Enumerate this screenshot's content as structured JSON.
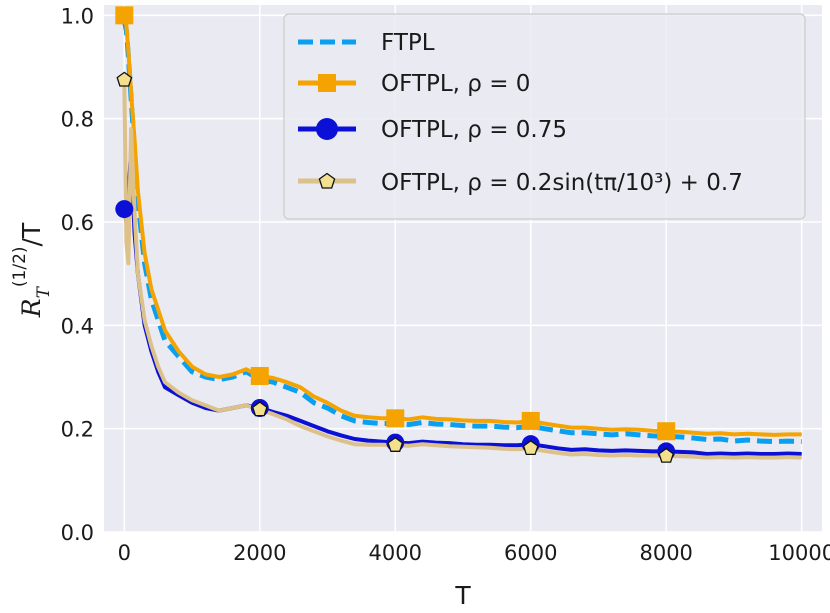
{
  "chart_data": {
    "type": "line",
    "title": "",
    "xlabel": "T",
    "ylabel": "R_T^(1/2) / T",
    "ylabel_parts": {
      "R": "R",
      "T_sub": "T",
      "sup": "(1/2)",
      "div": "/T"
    },
    "xlim": [
      -300,
      10300
    ],
    "ylim": [
      0.0,
      1.02
    ],
    "x_ticks": [
      0,
      2000,
      4000,
      6000,
      8000,
      10000
    ],
    "x_tick_labels": [
      "0",
      "2000",
      "4000",
      "6000",
      "8000",
      "10000"
    ],
    "y_ticks": [
      0.0,
      0.2,
      0.4,
      0.6,
      0.8,
      1.0
    ],
    "y_tick_labels": [
      "0.0",
      "0.2",
      "0.4",
      "0.6",
      "0.8",
      "1.0"
    ],
    "grid": true,
    "legend_position": "top-right",
    "background": "#eaeaf2",
    "series": [
      {
        "name": "FTPL",
        "legend_label": "FTPL",
        "color": "#0b9ff0",
        "style": "dashed",
        "marker": "none",
        "x": [
          0,
          30,
          60,
          100,
          150,
          200,
          300,
          400,
          500,
          600,
          800,
          1000,
          1200,
          1400,
          1600,
          1800,
          2000,
          2200,
          2400,
          2600,
          2800,
          3000,
          3200,
          3400,
          3600,
          3800,
          4000,
          4200,
          4400,
          4600,
          4800,
          5000,
          5200,
          5400,
          5600,
          5800,
          6000,
          6200,
          6400,
          6600,
          6800,
          7000,
          7200,
          7400,
          7600,
          7800,
          8000,
          8200,
          8400,
          8600,
          8800,
          9000,
          9200,
          9400,
          9600,
          9800,
          10000
        ],
        "values": [
          0.99,
          0.97,
          0.92,
          0.84,
          0.74,
          0.64,
          0.52,
          0.45,
          0.41,
          0.37,
          0.34,
          0.31,
          0.3,
          0.295,
          0.3,
          0.31,
          0.295,
          0.29,
          0.28,
          0.27,
          0.25,
          0.24,
          0.225,
          0.215,
          0.212,
          0.21,
          0.21,
          0.208,
          0.212,
          0.209,
          0.208,
          0.206,
          0.205,
          0.205,
          0.203,
          0.202,
          0.205,
          0.2,
          0.196,
          0.192,
          0.192,
          0.19,
          0.188,
          0.19,
          0.188,
          0.186,
          0.185,
          0.184,
          0.182,
          0.179,
          0.18,
          0.176,
          0.178,
          0.176,
          0.175,
          0.176,
          0.175
        ]
      },
      {
        "name": "OFTPL rho=0",
        "legend_label": "OFTPL, ρ = 0",
        "color": "#f5a300",
        "style": "solid",
        "marker": "square",
        "markers_at": [
          0,
          2000,
          4000,
          6000,
          8000
        ],
        "x": [
          0,
          30,
          60,
          100,
          150,
          200,
          300,
          400,
          500,
          600,
          800,
          1000,
          1200,
          1400,
          1600,
          1800,
          2000,
          2200,
          2400,
          2600,
          2800,
          3000,
          3200,
          3400,
          3600,
          3800,
          4000,
          4200,
          4400,
          4600,
          4800,
          5000,
          5200,
          5400,
          5600,
          5800,
          6000,
          6200,
          6400,
          6600,
          6800,
          7000,
          7200,
          7400,
          7600,
          7800,
          8000,
          8200,
          8400,
          8600,
          8800,
          9000,
          9200,
          9400,
          9600,
          9800,
          10000
        ],
        "values": [
          1.0,
          0.98,
          0.93,
          0.85,
          0.76,
          0.66,
          0.54,
          0.47,
          0.43,
          0.39,
          0.35,
          0.32,
          0.305,
          0.3,
          0.305,
          0.315,
          0.302,
          0.298,
          0.29,
          0.28,
          0.262,
          0.25,
          0.235,
          0.225,
          0.222,
          0.22,
          0.22,
          0.218,
          0.222,
          0.219,
          0.218,
          0.216,
          0.215,
          0.215,
          0.213,
          0.212,
          0.215,
          0.21,
          0.206,
          0.202,
          0.202,
          0.2,
          0.198,
          0.199,
          0.198,
          0.196,
          0.195,
          0.194,
          0.192,
          0.19,
          0.191,
          0.189,
          0.19,
          0.189,
          0.188,
          0.189,
          0.189
        ]
      },
      {
        "name": "OFTPL rho=0.75",
        "legend_label": "OFTPL, ρ = 0.75",
        "color": "#0a10d6",
        "style": "solid",
        "marker": "circle",
        "markers_at": [
          0,
          2000,
          4000,
          6000,
          8000
        ],
        "x": [
          0,
          30,
          60,
          100,
          150,
          200,
          300,
          400,
          500,
          600,
          800,
          1000,
          1200,
          1400,
          1600,
          1800,
          2000,
          2200,
          2400,
          2600,
          2800,
          3000,
          3200,
          3400,
          3600,
          3800,
          4000,
          4200,
          4400,
          4600,
          4800,
          5000,
          5200,
          5400,
          5600,
          5800,
          6000,
          6200,
          6400,
          6600,
          6800,
          7000,
          7200,
          7400,
          7600,
          7800,
          8000,
          8200,
          8400,
          8600,
          8800,
          9000,
          9200,
          9400,
          9600,
          9800,
          10000
        ],
        "values": [
          0.625,
          0.6,
          0.65,
          0.74,
          0.58,
          0.5,
          0.4,
          0.35,
          0.31,
          0.28,
          0.265,
          0.25,
          0.24,
          0.235,
          0.24,
          0.245,
          0.24,
          0.232,
          0.225,
          0.215,
          0.205,
          0.195,
          0.187,
          0.18,
          0.177,
          0.175,
          0.173,
          0.172,
          0.175,
          0.173,
          0.172,
          0.17,
          0.169,
          0.169,
          0.168,
          0.168,
          0.17,
          0.166,
          0.162,
          0.159,
          0.16,
          0.158,
          0.157,
          0.158,
          0.157,
          0.156,
          0.156,
          0.155,
          0.154,
          0.151,
          0.152,
          0.151,
          0.152,
          0.151,
          0.151,
          0.152,
          0.151
        ]
      },
      {
        "name": "OFTPL rho=sin",
        "legend_label": "OFTPL, ρ = 0.2sin(tπ/10³) + 0.7",
        "color": "#dcc18a",
        "style": "solid",
        "marker": "pentagon",
        "marker_fill": "#f2e08f",
        "markers_at": [
          0,
          2000,
          4000,
          6000,
          8000
        ],
        "x": [
          0,
          30,
          60,
          100,
          150,
          200,
          300,
          400,
          500,
          600,
          800,
          1000,
          1200,
          1400,
          1600,
          1800,
          2000,
          2200,
          2400,
          2600,
          2800,
          3000,
          3200,
          3400,
          3600,
          3800,
          4000,
          4200,
          4400,
          4600,
          4800,
          5000,
          5200,
          5400,
          5600,
          5800,
          6000,
          6200,
          6400,
          6600,
          6800,
          7000,
          7200,
          7400,
          7600,
          7800,
          8000,
          8200,
          8400,
          8600,
          8800,
          9000,
          9200,
          9400,
          9600,
          9800,
          10000
        ],
        "values": [
          0.875,
          0.56,
          0.52,
          0.78,
          0.62,
          0.5,
          0.41,
          0.36,
          0.32,
          0.29,
          0.27,
          0.255,
          0.245,
          0.235,
          0.24,
          0.245,
          0.237,
          0.228,
          0.218,
          0.205,
          0.195,
          0.185,
          0.177,
          0.17,
          0.169,
          0.169,
          0.168,
          0.167,
          0.17,
          0.168,
          0.166,
          0.165,
          0.164,
          0.163,
          0.161,
          0.16,
          0.162,
          0.157,
          0.153,
          0.15,
          0.151,
          0.149,
          0.148,
          0.149,
          0.148,
          0.148,
          0.147,
          0.147,
          0.146,
          0.144,
          0.145,
          0.144,
          0.145,
          0.144,
          0.144,
          0.145,
          0.144
        ]
      }
    ]
  }
}
